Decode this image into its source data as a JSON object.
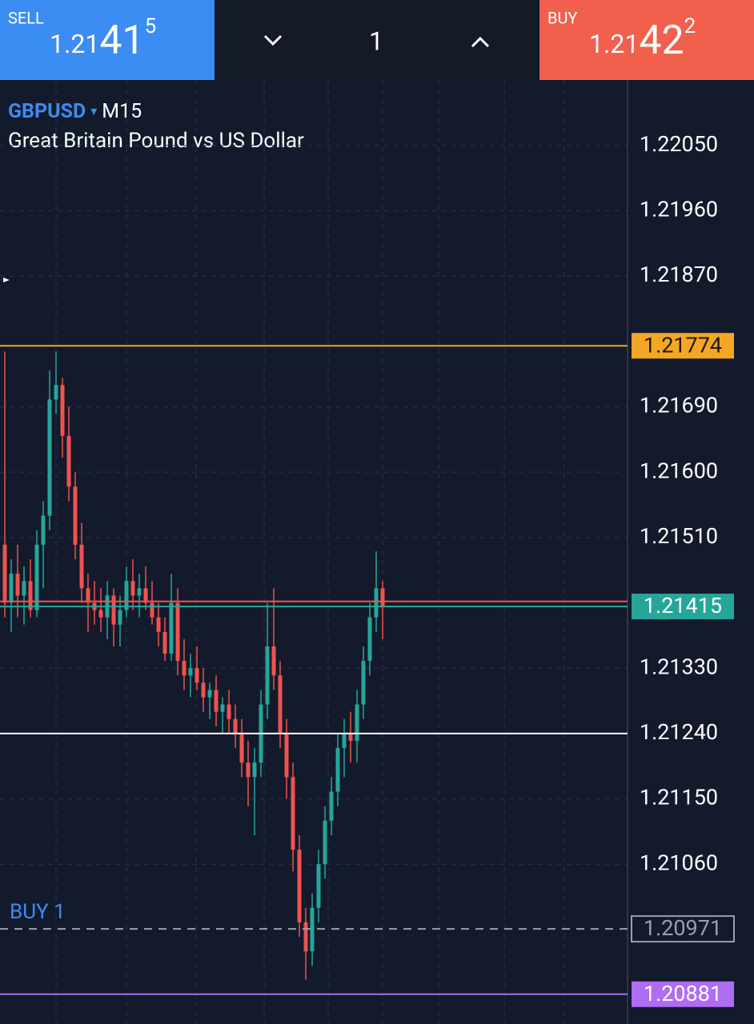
{
  "header": {
    "sell": {
      "label": "SELL",
      "price_parts": [
        "1.21",
        "41",
        "5"
      ]
    },
    "lot": "1",
    "buy": {
      "label": "BUY",
      "price_parts": [
        "1.21",
        "42",
        "2"
      ]
    }
  },
  "chart_data": {
    "type": "candlestick",
    "symbol": "GBPUSD",
    "timeframe": "M15",
    "title": "Great Britain Pound vs US Dollar",
    "up_color": "#26a69a",
    "down_color": "#ef5350",
    "grid": true,
    "ylim": [
      1.2084,
      1.2214
    ],
    "yticks": [
      {
        "value": 1.2205,
        "label": "1.22050"
      },
      {
        "value": 1.2196,
        "label": "1.21960"
      },
      {
        "value": 1.2187,
        "label": "1.21870"
      },
      {
        "value": 1.2169,
        "label": "1.21690"
      },
      {
        "value": 1.216,
        "label": "1.21600"
      },
      {
        "value": 1.2151,
        "label": "1.21510"
      },
      {
        "value": 1.2133,
        "label": "1.21330"
      },
      {
        "value": 1.2124,
        "label": "1.21240"
      },
      {
        "value": 1.2115,
        "label": "1.21150"
      },
      {
        "value": 1.2106,
        "label": "1.21060"
      }
    ],
    "levels": [
      {
        "value": 1.21774,
        "label": "1.21774",
        "color": "#f5a623"
      },
      {
        "value": 1.21422,
        "color": "#ef5350"
      },
      {
        "value": 1.21415,
        "label": "1.21415",
        "color": "#26a69a"
      },
      {
        "value": 1.2124,
        "color": "#ffffff"
      },
      {
        "value": 1.20971,
        "label": "1.20971",
        "name": "BUY 1",
        "color": "#9aa0aa",
        "style": "dashed"
      },
      {
        "value": 1.20881,
        "label": "1.20881",
        "color": "#b06cf5"
      }
    ],
    "ohlc": [
      [
        1.215,
        1.21766,
        1.214,
        1.2142
      ],
      [
        1.2142,
        1.2148,
        1.2138,
        1.2146
      ],
      [
        1.2146,
        1.215,
        1.214,
        1.2143
      ],
      [
        1.2143,
        1.2147,
        1.2139,
        1.2145
      ],
      [
        1.2145,
        1.2148,
        1.214,
        1.2141
      ],
      [
        1.2141,
        1.2152,
        1.214,
        1.215
      ],
      [
        1.215,
        1.2156,
        1.2144,
        1.2154
      ],
      [
        1.2154,
        1.2174,
        1.2152,
        1.217
      ],
      [
        1.217,
        1.21766,
        1.2168,
        1.2172
      ],
      [
        1.2172,
        1.2173,
        1.2162,
        1.2165
      ],
      [
        1.2165,
        1.2169,
        1.2156,
        1.2158
      ],
      [
        1.2158,
        1.216,
        1.2148,
        1.215
      ],
      [
        1.215,
        1.2153,
        1.2142,
        1.2144
      ],
      [
        1.2144,
        1.2146,
        1.2138,
        1.2142
      ],
      [
        1.2142,
        1.2145,
        1.2139,
        1.2141
      ],
      [
        1.2141,
        1.2144,
        1.2138,
        1.214
      ],
      [
        1.214,
        1.2145,
        1.2137,
        1.2143
      ],
      [
        1.2143,
        1.2144,
        1.2136,
        1.2139
      ],
      [
        1.2139,
        1.2143,
        1.2136,
        1.2141
      ],
      [
        1.2141,
        1.2147,
        1.214,
        1.2145
      ],
      [
        1.2145,
        1.2148,
        1.2141,
        1.2143
      ],
      [
        1.2143,
        1.2146,
        1.214,
        1.2144
      ],
      [
        1.2144,
        1.2147,
        1.2141,
        1.2142
      ],
      [
        1.2142,
        1.2145,
        1.2139,
        1.214
      ],
      [
        1.214,
        1.2142,
        1.2136,
        1.2138
      ],
      [
        1.2138,
        1.214,
        1.2134,
        1.2135
      ],
      [
        1.2135,
        1.2146,
        1.2134,
        1.2142
      ],
      [
        1.2142,
        1.2144,
        1.2132,
        1.2134
      ],
      [
        1.2134,
        1.2137,
        1.213,
        1.2132
      ],
      [
        1.2132,
        1.2135,
        1.2129,
        1.2133
      ],
      [
        1.2133,
        1.2136,
        1.213,
        1.2131
      ],
      [
        1.2131,
        1.2133,
        1.2127,
        1.2129
      ],
      [
        1.2129,
        1.2131,
        1.2126,
        1.213
      ],
      [
        1.213,
        1.2132,
        1.2125,
        1.2127
      ],
      [
        1.2127,
        1.2129,
        1.2124,
        1.2128
      ],
      [
        1.2128,
        1.213,
        1.2124,
        1.2126
      ],
      [
        1.2126,
        1.2128,
        1.2122,
        1.2124
      ],
      [
        1.2124,
        1.2126,
        1.2118,
        1.212
      ],
      [
        1.212,
        1.2123,
        1.2114,
        1.2118
      ],
      [
        1.2118,
        1.2122,
        1.211,
        1.212
      ],
      [
        1.212,
        1.213,
        1.2118,
        1.2128
      ],
      [
        1.2128,
        1.2142,
        1.2126,
        1.2136
      ],
      [
        1.2136,
        1.2144,
        1.213,
        1.2132
      ],
      [
        1.2132,
        1.2134,
        1.2122,
        1.2124
      ],
      [
        1.2124,
        1.2126,
        1.2115,
        1.2118
      ],
      [
        1.2118,
        1.212,
        1.2105,
        1.2108
      ],
      [
        1.2108,
        1.211,
        1.2096,
        1.2098
      ],
      [
        1.2098,
        1.21,
        1.20901,
        1.2094
      ],
      [
        1.2094,
        1.2102,
        1.2092,
        1.21
      ],
      [
        1.21,
        1.2108,
        1.2098,
        1.2106
      ],
      [
        1.2106,
        1.2114,
        1.2104,
        1.2112
      ],
      [
        1.2112,
        1.2118,
        1.211,
        1.2116
      ],
      [
        1.2116,
        1.2124,
        1.2114,
        1.2122
      ],
      [
        1.2122,
        1.2126,
        1.2118,
        1.2124
      ],
      [
        1.2124,
        1.2127,
        1.212,
        1.2123
      ],
      [
        1.2123,
        1.213,
        1.212,
        1.2128
      ],
      [
        1.2128,
        1.2136,
        1.2126,
        1.2134
      ],
      [
        1.2134,
        1.2142,
        1.2132,
        1.214
      ],
      [
        1.214,
        1.21491,
        1.2138,
        1.2144
      ],
      [
        1.2144,
        1.2145,
        1.2137,
        1.21415
      ]
    ]
  }
}
